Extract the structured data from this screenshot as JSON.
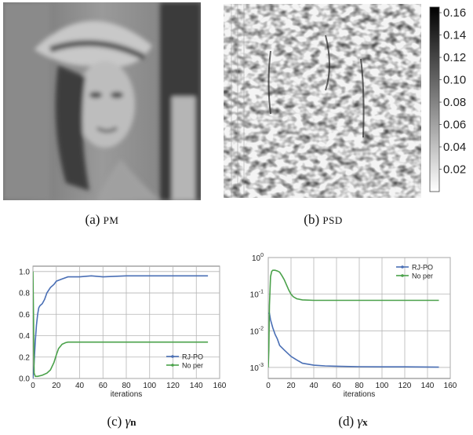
{
  "panels": {
    "a": {
      "caption_letter": "(a)",
      "caption_text": "PM"
    },
    "b": {
      "caption_letter": "(b)",
      "caption_text": "PSD"
    },
    "c": {
      "caption_letter": "(c)",
      "caption_symbol": "γ",
      "caption_sub": "n"
    },
    "d": {
      "caption_letter": "(d)",
      "caption_symbol": "γ",
      "caption_sub": "x"
    }
  },
  "colorbar": {
    "ticks": [
      "0.16",
      "0.14",
      "0.12",
      "0.10",
      "0.08",
      "0.06",
      "0.04",
      "0.02"
    ],
    "range": [
      0.0,
      0.165
    ],
    "colormap": [
      "#ffffff",
      "#000000"
    ]
  },
  "chart_data": [
    {
      "id": "c",
      "type": "line",
      "xlabel": "iterations",
      "ylabel": "",
      "xlim": [
        0,
        160
      ],
      "ylim": [
        0,
        1.05
      ],
      "xticks": [
        "0",
        "20",
        "40",
        "60",
        "80",
        "100",
        "120",
        "140",
        "160"
      ],
      "yticks": [
        "0.0",
        "0.2",
        "0.4",
        "0.6",
        "0.8",
        "1.0"
      ],
      "grid": true,
      "legend_position": "bottom-right",
      "series": [
        {
          "name": "RJ-PO",
          "color": "#4a6fb5",
          "x": [
            0,
            1,
            2,
            3,
            4,
            5,
            6,
            8,
            10,
            12,
            15,
            18,
            20,
            25,
            30,
            40,
            50,
            60,
            80,
            100,
            120,
            140,
            150
          ],
          "y": [
            0.0,
            0.15,
            0.35,
            0.5,
            0.6,
            0.66,
            0.68,
            0.7,
            0.74,
            0.8,
            0.85,
            0.88,
            0.91,
            0.93,
            0.95,
            0.95,
            0.96,
            0.95,
            0.96,
            0.96,
            0.96,
            0.96,
            0.96
          ]
        },
        {
          "name": "No per",
          "color": "#4aa14a",
          "x": [
            0,
            0.5,
            1,
            2,
            4,
            8,
            12,
            15,
            18,
            20,
            22,
            25,
            28,
            30,
            40,
            60,
            80,
            100,
            120,
            140,
            150
          ],
          "y": [
            1.0,
            0.6,
            0.05,
            0.02,
            0.02,
            0.03,
            0.05,
            0.08,
            0.15,
            0.22,
            0.28,
            0.32,
            0.335,
            0.34,
            0.34,
            0.34,
            0.34,
            0.34,
            0.34,
            0.34,
            0.34
          ]
        }
      ]
    },
    {
      "id": "d",
      "type": "line",
      "xlabel": "iterations",
      "ylabel": "",
      "xlim": [
        0,
        160
      ],
      "ylim": [
        0.0005,
        1.0
      ],
      "yscale": "log",
      "xticks": [
        "0",
        "20",
        "40",
        "60",
        "80",
        "100",
        "120",
        "140",
        "160"
      ],
      "yticks": [
        {
          "base": "10",
          "exp": "0"
        },
        {
          "base": "10",
          "exp": "-1"
        },
        {
          "base": "10",
          "exp": "-2"
        },
        {
          "base": "10",
          "exp": "-3"
        }
      ],
      "ytick_values": [
        1,
        0.1,
        0.01,
        0.001
      ],
      "grid": true,
      "legend_position": "top-right",
      "series": [
        {
          "name": "RJ-PO",
          "color": "#4a6fb5",
          "x": [
            0,
            1,
            2,
            4,
            6,
            8,
            10,
            14,
            20,
            25,
            30,
            40,
            50,
            60,
            80,
            100,
            120,
            140,
            150
          ],
          "y": [
            0.03,
            0.03,
            0.02,
            0.012,
            0.008,
            0.006,
            0.004,
            0.003,
            0.002,
            0.0016,
            0.0013,
            0.00115,
            0.0011,
            0.00108,
            0.00105,
            0.00104,
            0.00104,
            0.00103,
            0.00102
          ]
        },
        {
          "name": "No per",
          "color": "#4aa14a",
          "x": [
            0,
            0.5,
            1,
            2,
            3,
            4,
            6,
            8,
            10,
            12,
            14,
            16,
            18,
            20,
            22,
            25,
            30,
            40,
            60,
            80,
            100,
            120,
            140,
            150
          ],
          "y": [
            0.001,
            0.003,
            0.05,
            0.3,
            0.42,
            0.45,
            0.45,
            0.43,
            0.4,
            0.32,
            0.25,
            0.18,
            0.13,
            0.1,
            0.085,
            0.075,
            0.07,
            0.068,
            0.068,
            0.068,
            0.068,
            0.068,
            0.068,
            0.068
          ]
        }
      ]
    }
  ]
}
